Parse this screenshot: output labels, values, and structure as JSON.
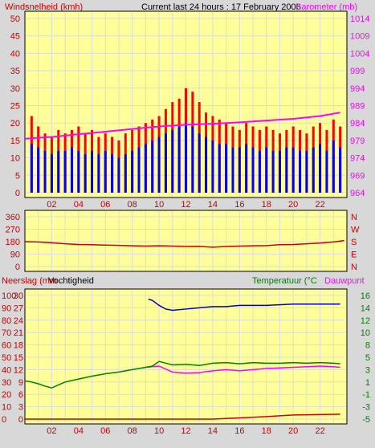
{
  "header": {
    "wind_title": "Windsnelheid (kmh)",
    "center_title": "Current last 24 hours : 17 February 2006",
    "baro_title": "Barometer (mb)"
  },
  "colors": {
    "background": "#d8d8d8",
    "panel": "#ffff99",
    "grid": "#dcdcdc",
    "wind_gust": "#ff0000",
    "wind_avg": "#0000ff",
    "barometer": "#ff00ff",
    "direction": "#cc0000",
    "humidity": "#0000cc",
    "temperature": "#008000",
    "dewpoint": "#ff00ff",
    "rain": "#cc0000",
    "title_red": "#cc0000",
    "title_green": "#008000",
    "axis_text": "#cc0000"
  },
  "x_axis": {
    "ticks": [
      "02",
      "04",
      "06",
      "08",
      "10",
      "12",
      "14",
      "16",
      "18",
      "20",
      "22"
    ]
  },
  "chart_data": [
    {
      "type": "bar",
      "id": "wind",
      "title": "Windsnelheid (kmh)",
      "ylim": [
        0,
        50
      ],
      "yticks": [
        "0",
        "5",
        "10",
        "15",
        "20",
        "25",
        "30",
        "35",
        "40",
        "45",
        "50"
      ],
      "x_hours": [
        0,
        24
      ],
      "right_axis": {
        "label": "Barometer (mb)",
        "ylim": [
          964,
          1014
        ],
        "ticks": [
          "964",
          "969",
          "974",
          "979",
          "984",
          "989",
          "994",
          "999",
          "1004",
          "1009",
          "1014"
        ]
      },
      "series": [
        {
          "name": "gust",
          "x": [
            0.5,
            1,
            1.5,
            2,
            2.5,
            3,
            3.5,
            4,
            4.5,
            5,
            5.5,
            6,
            6.5,
            7,
            7.5,
            8,
            8.5,
            9,
            9.5,
            10,
            10.5,
            11,
            11.5,
            12,
            12.5,
            13,
            13.5,
            14,
            14.5,
            15,
            15.5,
            16,
            16.5,
            17,
            17.5,
            18,
            18.5,
            19,
            19.5,
            20,
            20.5,
            21,
            21.5,
            22,
            22.5,
            23,
            23.5
          ],
          "values": [
            22,
            19,
            17,
            16,
            18,
            17,
            18,
            19,
            17,
            18,
            16,
            17,
            16,
            15,
            17,
            18,
            19,
            20,
            21,
            22,
            24,
            26,
            27,
            30,
            29,
            26,
            23,
            22,
            21,
            20,
            19,
            18,
            20,
            19,
            18,
            19,
            18,
            17,
            18,
            19,
            18,
            17,
            19,
            20,
            18,
            21,
            19
          ]
        },
        {
          "name": "average",
          "x": [
            0.5,
            1,
            1.5,
            2,
            2.5,
            3,
            3.5,
            4,
            4.5,
            5,
            5.5,
            6,
            6.5,
            7,
            7.5,
            8,
            8.5,
            9,
            9.5,
            10,
            10.5,
            11,
            11.5,
            12,
            12.5,
            13,
            13.5,
            14,
            14.5,
            15,
            15.5,
            16,
            16.5,
            17,
            17.5,
            18,
            18.5,
            19,
            19.5,
            20,
            20.5,
            21,
            21.5,
            22,
            22.5,
            23,
            23.5
          ],
          "values": [
            14,
            13,
            12,
            11,
            12,
            12,
            13,
            12,
            11,
            12,
            11,
            12,
            11,
            10,
            11,
            12,
            13,
            14,
            15,
            16,
            17,
            18,
            19,
            20,
            19,
            17,
            16,
            15,
            14,
            14,
            13,
            13,
            14,
            13,
            12,
            13,
            12,
            12,
            13,
            13,
            12,
            12,
            13,
            14,
            12,
            15,
            13
          ]
        },
        {
          "name": "barometer",
          "axis": "right",
          "x": [
            0,
            2,
            4,
            6,
            8,
            10,
            12,
            14,
            16,
            18,
            20,
            22,
            23.5
          ],
          "values": [
            979.5,
            980,
            980.8,
            981.5,
            982.3,
            983,
            983.5,
            983.8,
            984.2,
            984.7,
            985.2,
            986,
            987
          ]
        }
      ]
    },
    {
      "type": "line",
      "id": "direction",
      "ylim": [
        0,
        360
      ],
      "yticks": [
        "0",
        "90",
        "180",
        "270",
        "360"
      ],
      "right_labels": [
        "N",
        "W",
        "S",
        "E",
        "N"
      ],
      "x_hours": [
        0,
        24
      ],
      "series": [
        {
          "name": "direction",
          "x": [
            0,
            1,
            2,
            3,
            4,
            5,
            6,
            7,
            8,
            9,
            10,
            11,
            12,
            13,
            14,
            15,
            16,
            17,
            18,
            19,
            20,
            21,
            22,
            23,
            23.8
          ],
          "values": [
            180,
            178,
            172,
            165,
            160,
            158,
            155,
            153,
            150,
            148,
            150,
            148,
            145,
            146,
            140,
            145,
            148,
            150,
            152,
            158,
            160,
            165,
            170,
            178,
            188
          ]
        }
      ]
    },
    {
      "type": "line",
      "id": "climate",
      "left_axes": [
        {
          "label": "Neerslag (mm)",
          "ylim": [
            0,
            100
          ],
          "ticks": [
            "0",
            "10",
            "20",
            "30",
            "40",
            "50",
            "60",
            "70",
            "80",
            "90",
            "100"
          ]
        },
        {
          "label": "Vochtigheid",
          "ylim": [
            0,
            30
          ],
          "ticks": [
            "0",
            "3",
            "6",
            "9",
            "12",
            "15",
            "18",
            "21",
            "24",
            "27",
            "30"
          ]
        }
      ],
      "right_axis": {
        "label": "Temperatuur (°C)",
        "ylim": [
          -5,
          16
        ],
        "ticks": [
          "-5",
          "-3",
          "-1",
          "1",
          "3",
          "5",
          "8",
          "10",
          "12",
          "14",
          "16"
        ]
      },
      "x_hours": [
        0,
        24
      ],
      "series": [
        {
          "name": "humidity",
          "axis": "left_humidity",
          "x": [
            9.2,
            9.5,
            10,
            10.5,
            11,
            12,
            13,
            14,
            15,
            16,
            18,
            20,
            22,
            23.5
          ],
          "values": [
            97,
            96,
            92,
            89,
            88,
            89,
            90,
            91,
            91,
            92,
            92,
            93,
            93,
            93
          ]
        },
        {
          "name": "temperature",
          "axis": "right",
          "x": [
            0,
            0.5,
            1,
            1.5,
            2,
            2.5,
            3,
            4,
            5,
            6,
            7,
            8,
            9,
            9.5,
            10,
            10.5,
            11,
            12,
            13,
            14,
            15,
            16,
            17,
            18,
            19,
            20,
            21,
            22,
            23,
            23.5
          ],
          "values": [
            1.5,
            1.3,
            1,
            0.6,
            0.3,
            0.8,
            1.3,
            1.8,
            2.3,
            2.7,
            3,
            3.4,
            3.8,
            4,
            4.8,
            4.5,
            4.2,
            4.3,
            4.1,
            4.5,
            4.6,
            4.4,
            4.6,
            4.5,
            4.5,
            4.6,
            4.5,
            4.6,
            4.5,
            4.4
          ]
        },
        {
          "name": "dewpoint",
          "axis": "right",
          "x": [
            9,
            9.5,
            10,
            10.5,
            11,
            12,
            13,
            14,
            15,
            16,
            17,
            18,
            19,
            20,
            21,
            22,
            23,
            23.5
          ],
          "values": [
            3.8,
            3.9,
            4,
            3.5,
            3,
            2.8,
            2.9,
            3.2,
            3.4,
            3.2,
            3.4,
            3.6,
            3.7,
            3.8,
            3.9,
            4,
            3.9,
            3.8
          ]
        },
        {
          "name": "rain",
          "axis": "left_rain",
          "x": [
            0,
            10,
            14,
            16,
            18,
            20,
            23.5
          ],
          "values": [
            0,
            0,
            0,
            0.3,
            0.6,
            1,
            1.2
          ]
        }
      ]
    }
  ],
  "titles": {
    "neerslag": "Neerslag (mm",
    "vochtigheid": "Vochtigheid",
    "temperatuur": "Temperatuur (°C",
    "dauwpunt": "Dauwpunt"
  }
}
